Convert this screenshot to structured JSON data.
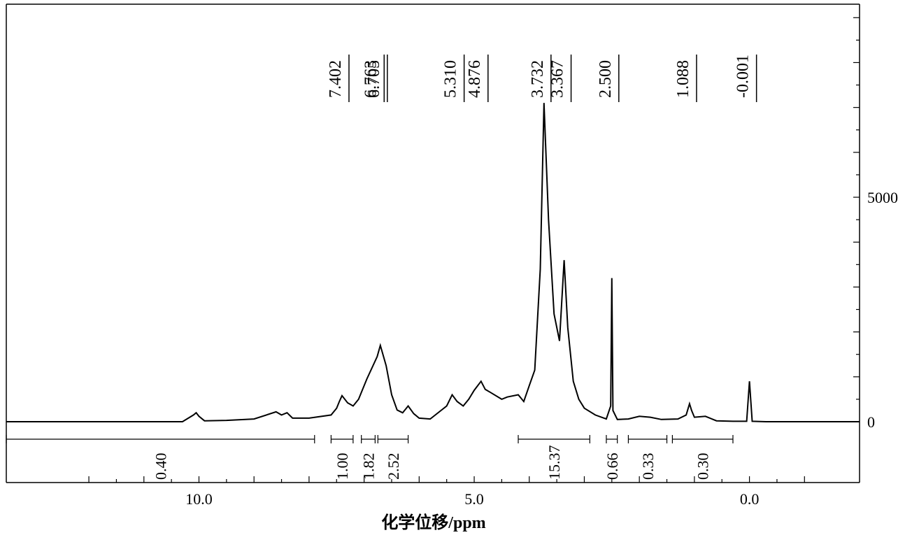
{
  "chart_data": {
    "type": "line",
    "title": "",
    "xlabel": "化学位移/ppm",
    "ylabel": "",
    "xlim": [
      13.5,
      -2.0
    ],
    "ylim": [
      0,
      9300
    ],
    "x_ticks": [
      "10.0",
      "5.0",
      "0.0"
    ],
    "x_tick_values": [
      10.0,
      5.0,
      0.0
    ],
    "y_ticks": [
      "5000",
      "0"
    ],
    "y_tick_values": [
      5000,
      0
    ],
    "series": [
      {
        "x": [
          13.5,
          10.3,
          10.1,
          10.05,
          10.0,
          9.9,
          9.5,
          9.0,
          8.6,
          8.5,
          8.4,
          8.3,
          8.2,
          8.0,
          7.6,
          7.5,
          7.45,
          7.402,
          7.3,
          7.2,
          7.1,
          6.95,
          6.763,
          6.705,
          6.6,
          6.5,
          6.4,
          6.3,
          6.2,
          6.1,
          6.0,
          5.8,
          5.5,
          5.4,
          5.31,
          5.2,
          5.1,
          5.0,
          4.876,
          4.8,
          4.7,
          4.5,
          4.4,
          4.2,
          4.1,
          4.0,
          3.9,
          3.8,
          3.732,
          3.65,
          3.55,
          3.45,
          3.367,
          3.3,
          3.2,
          3.1,
          3.0,
          2.8,
          2.6,
          2.52,
          2.5,
          2.48,
          2.4,
          2.2,
          2.0,
          1.8,
          1.6,
          1.3,
          1.15,
          1.088,
          1.05,
          1.0,
          0.8,
          0.6,
          0.3,
          0.05,
          0.0,
          -0.05,
          -0.3,
          -2.0
        ],
        "values": [
          0,
          0,
          150,
          200,
          120,
          20,
          30,
          60,
          220,
          150,
          200,
          80,
          80,
          80,
          150,
          300,
          450,
          580,
          420,
          350,
          500,
          950,
          1450,
          1700,
          1250,
          600,
          260,
          200,
          350,
          180,
          80,
          60,
          350,
          600,
          450,
          350,
          500,
          700,
          900,
          720,
          650,
          500,
          550,
          600,
          450,
          800,
          1150,
          3400,
          7100,
          4500,
          2400,
          1800,
          3600,
          2100,
          900,
          500,
          300,
          150,
          60,
          350,
          3200,
          250,
          50,
          60,
          120,
          100,
          50,
          60,
          150,
          400,
          250,
          100,
          120,
          20,
          10,
          10,
          900,
          10,
          0,
          0
        ]
      }
    ],
    "peak_labels": [
      "7.402",
      "6.763",
      "6.705",
      "5.310",
      "4.876",
      "3.732",
      "3.367",
      "2.500",
      "1.088",
      "-0.001"
    ],
    "peak_label_values": [
      7.402,
      6.763,
      6.705,
      5.31,
      4.876,
      3.732,
      3.367,
      2.5,
      1.088,
      -0.001
    ],
    "integrations": [
      {
        "label": "0.40",
        "from": 13.5,
        "to": 7.9
      },
      {
        "label": "1.00",
        "from": 7.6,
        "to": 7.2
      },
      {
        "label": "1.82",
        "from": 7.05,
        "to": 6.8
      },
      {
        "label": "2.52",
        "from": 6.75,
        "to": 6.2
      },
      {
        "label": "15.37",
        "from": 4.2,
        "to": 2.9
      },
      {
        "label": "0.66",
        "from": 2.6,
        "to": 2.4
      },
      {
        "label": "0.33",
        "from": 2.2,
        "to": 1.5
      },
      {
        "label": "0.30",
        "from": 1.4,
        "to": 0.3
      }
    ]
  }
}
